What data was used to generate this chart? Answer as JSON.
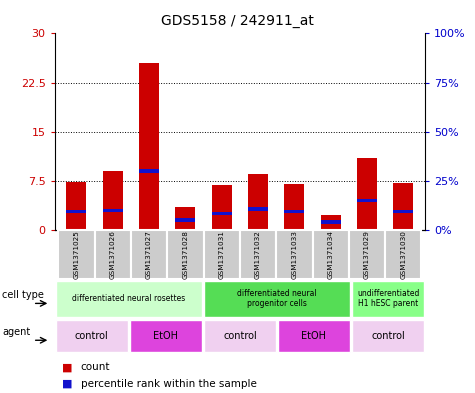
{
  "title": "GDS5158 / 242911_at",
  "samples": [
    "GSM1371025",
    "GSM1371026",
    "GSM1371027",
    "GSM1371028",
    "GSM1371031",
    "GSM1371032",
    "GSM1371033",
    "GSM1371034",
    "GSM1371029",
    "GSM1371030"
  ],
  "counts": [
    7.3,
    9.0,
    25.5,
    3.5,
    6.8,
    8.5,
    7.0,
    2.2,
    11.0,
    7.2
  ],
  "percentile_abs": [
    2.8,
    3.0,
    9.0,
    1.5,
    2.5,
    3.2,
    2.8,
    1.2,
    4.5,
    2.8
  ],
  "ylim_left": [
    0,
    30
  ],
  "ylim_right": [
    0,
    100
  ],
  "yticks_left": [
    0,
    7.5,
    15,
    22.5,
    30
  ],
  "yticks_right": [
    0,
    25,
    50,
    75,
    100
  ],
  "bar_color": "#cc0000",
  "percentile_color": "#1111cc",
  "cell_types": [
    {
      "label": "differentiated neural rosettes",
      "start": 0,
      "end": 4,
      "color": "#ccffcc"
    },
    {
      "label": "differentiated neural\nprogenitor cells",
      "start": 4,
      "end": 8,
      "color": "#55dd55"
    },
    {
      "label": "undifferentiated\nH1 hESC parent",
      "start": 8,
      "end": 10,
      "color": "#88ff88"
    }
  ],
  "agents": [
    {
      "label": "control",
      "start": 0,
      "end": 2,
      "color": "#f0d0f0"
    },
    {
      "label": "EtOH",
      "start": 2,
      "end": 4,
      "color": "#dd44dd"
    },
    {
      "label": "control",
      "start": 4,
      "end": 6,
      "color": "#f0d0f0"
    },
    {
      "label": "EtOH",
      "start": 6,
      "end": 8,
      "color": "#dd44dd"
    },
    {
      "label": "control",
      "start": 8,
      "end": 10,
      "color": "#f0d0f0"
    }
  ],
  "tick_color_left": "#cc0000",
  "tick_color_right": "#0000cc",
  "sample_bg": "#cccccc",
  "plot_bg": "#ffffff"
}
